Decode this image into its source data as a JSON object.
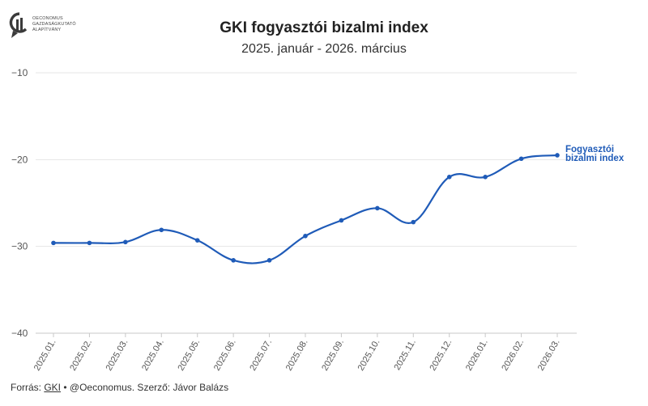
{
  "logo": {
    "lines": [
      "OECONOMUS",
      "GAZDASÁGKUTATÓ",
      "ALAPÍTVÁNY"
    ],
    "color": "#3b3b3b"
  },
  "chart_data": {
    "type": "line",
    "title": "GKI fogyasztói bizalmi index",
    "subtitle": "2025. január - 2026. március",
    "categories": [
      "2025.01.",
      "2025.02.",
      "2025.03.",
      "2025.04.",
      "2025.05.",
      "2025.06.",
      "2025.07.",
      "2025.08.",
      "2025.09.",
      "2025.10.",
      "2025.11.",
      "2025.12.",
      "2026.01.",
      "2026.02.",
      "2026.03."
    ],
    "series": [
      {
        "name": "Fogyasztói bizalmi index",
        "label_lines": [
          "Fogyasztói",
          "bizalmi index"
        ],
        "color": "#1f5bb8",
        "values": [
          -29.6,
          -29.6,
          -29.5,
          -28.1,
          -29.3,
          -31.6,
          -31.6,
          -28.8,
          -27.0,
          -25.6,
          -27.2,
          -22.0,
          -22.0,
          -19.9,
          -19.5
        ]
      }
    ],
    "ylim": [
      -40,
      -10
    ],
    "yticks": [
      -10,
      -20,
      -30,
      -40
    ],
    "grid": true,
    "xlabel": "",
    "ylabel": ""
  },
  "footer": {
    "prefix": "Forrás: ",
    "source": "GKI",
    "rest": " • @Oeconomus. Szerző: Jávor Balázs"
  }
}
